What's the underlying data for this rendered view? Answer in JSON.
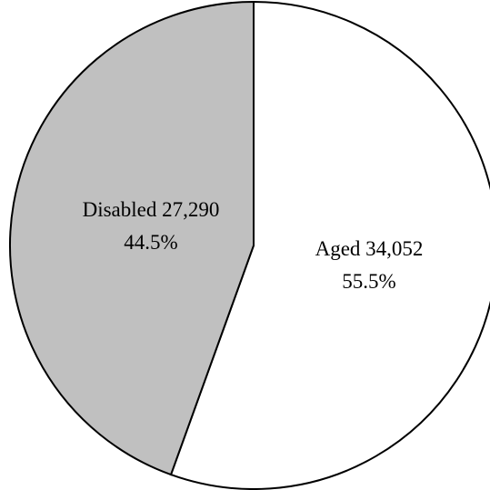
{
  "chart_data": {
    "type": "pie",
    "title": "",
    "slices": [
      {
        "label": "Aged",
        "value": 34052,
        "value_text": "34,052",
        "percent_text": "55.5%",
        "color": "#ffffff"
      },
      {
        "label": "Disabled",
        "value": 27290,
        "value_text": "27,290",
        "percent_text": "44.5%",
        "color": "#c0c0c0"
      }
    ],
    "start_angle": "12 o'clock",
    "direction": "clockwise",
    "outline_color": "#000000"
  }
}
